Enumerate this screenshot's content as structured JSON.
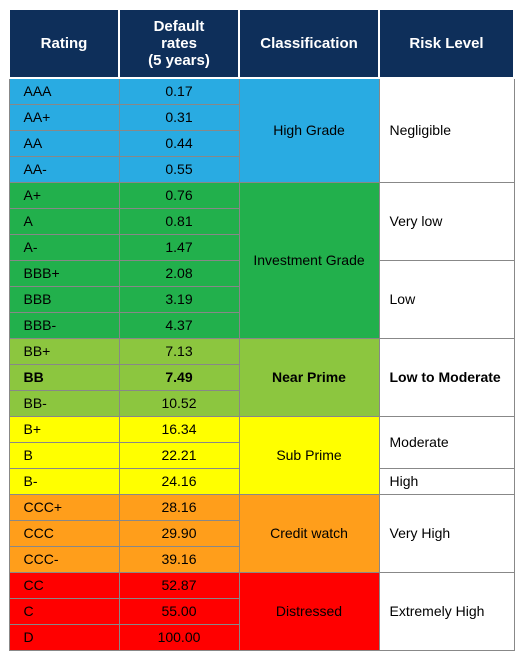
{
  "headers": {
    "rating": "Rating",
    "rates": "Default\nrates\n(5 years)",
    "classification": "Classification",
    "risk": "Risk Level"
  },
  "colors": {
    "header_bg": "#0e2f5a",
    "header_fg": "#ffffff",
    "blue": "#29abe2",
    "green": "#22b04c",
    "lgreen": "#8cc63f",
    "yellow": "#ffff00",
    "orange": "#ff9e1b",
    "red": "#ff0000",
    "white": "#ffffff",
    "border": "#888888"
  },
  "rows": [
    {
      "rating": "AAA",
      "rate": "0.17"
    },
    {
      "rating": "AA+",
      "rate": "0.31"
    },
    {
      "rating": "AA",
      "rate": "0.44"
    },
    {
      "rating": "AA-",
      "rate": "0.55"
    },
    {
      "rating": "A+",
      "rate": "0.76"
    },
    {
      "rating": "A",
      "rate": "0.81"
    },
    {
      "rating": "A-",
      "rate": "1.47"
    },
    {
      "rating": "BBB+",
      "rate": "2.08"
    },
    {
      "rating": "BBB",
      "rate": "3.19"
    },
    {
      "rating": "BBB-",
      "rate": "4.37"
    },
    {
      "rating": "BB+",
      "rate": "7.13"
    },
    {
      "rating": "BB",
      "rate": "7.49",
      "bold": true
    },
    {
      "rating": "BB-",
      "rate": "10.52"
    },
    {
      "rating": "B+",
      "rate": "16.34"
    },
    {
      "rating": "B",
      "rate": "22.21"
    },
    {
      "rating": "B-",
      "rate": "24.16"
    },
    {
      "rating": "CCC+",
      "rate": "28.16"
    },
    {
      "rating": "CCC",
      "rate": "29.90"
    },
    {
      "rating": "CCC-",
      "rate": "39.16"
    },
    {
      "rating": "CC",
      "rate": "52.87"
    },
    {
      "rating": "C",
      "rate": "55.00"
    },
    {
      "rating": "D",
      "rate": "100.00"
    }
  ],
  "classifications": [
    {
      "label": "High Grade",
      "start": 0,
      "span": 4,
      "color": "blue"
    },
    {
      "label": "Investment Grade",
      "start": 4,
      "span": 6,
      "color": "green"
    },
    {
      "label": "Near Prime",
      "start": 10,
      "span": 3,
      "color": "lgreen",
      "bold": true
    },
    {
      "label": "Sub Prime",
      "start": 13,
      "span": 3,
      "color": "yellow"
    },
    {
      "label": "Credit watch",
      "start": 16,
      "span": 3,
      "color": "orange"
    },
    {
      "label": "Distressed",
      "start": 19,
      "span": 3,
      "color": "red"
    }
  ],
  "risks": [
    {
      "label": "Negligible",
      "start": 0,
      "span": 4
    },
    {
      "label": "Very low",
      "start": 4,
      "span": 3
    },
    {
      "label": "Low",
      "start": 7,
      "span": 3
    },
    {
      "label": "Low to Moderate",
      "start": 10,
      "span": 3,
      "bold": true
    },
    {
      "label": "Moderate",
      "start": 13,
      "span": 2
    },
    {
      "label": "High",
      "start": 15,
      "span": 1
    },
    {
      "label": "Very High",
      "start": 16,
      "span": 3
    },
    {
      "label": "Extremely High",
      "start": 19,
      "span": 3
    }
  ],
  "row_color_map": [
    "blue",
    "blue",
    "blue",
    "blue",
    "green",
    "green",
    "green",
    "green",
    "green",
    "green",
    "lgreen",
    "lgreen",
    "lgreen",
    "yellow",
    "yellow",
    "yellow",
    "orange",
    "orange",
    "orange",
    "red",
    "red",
    "red"
  ]
}
